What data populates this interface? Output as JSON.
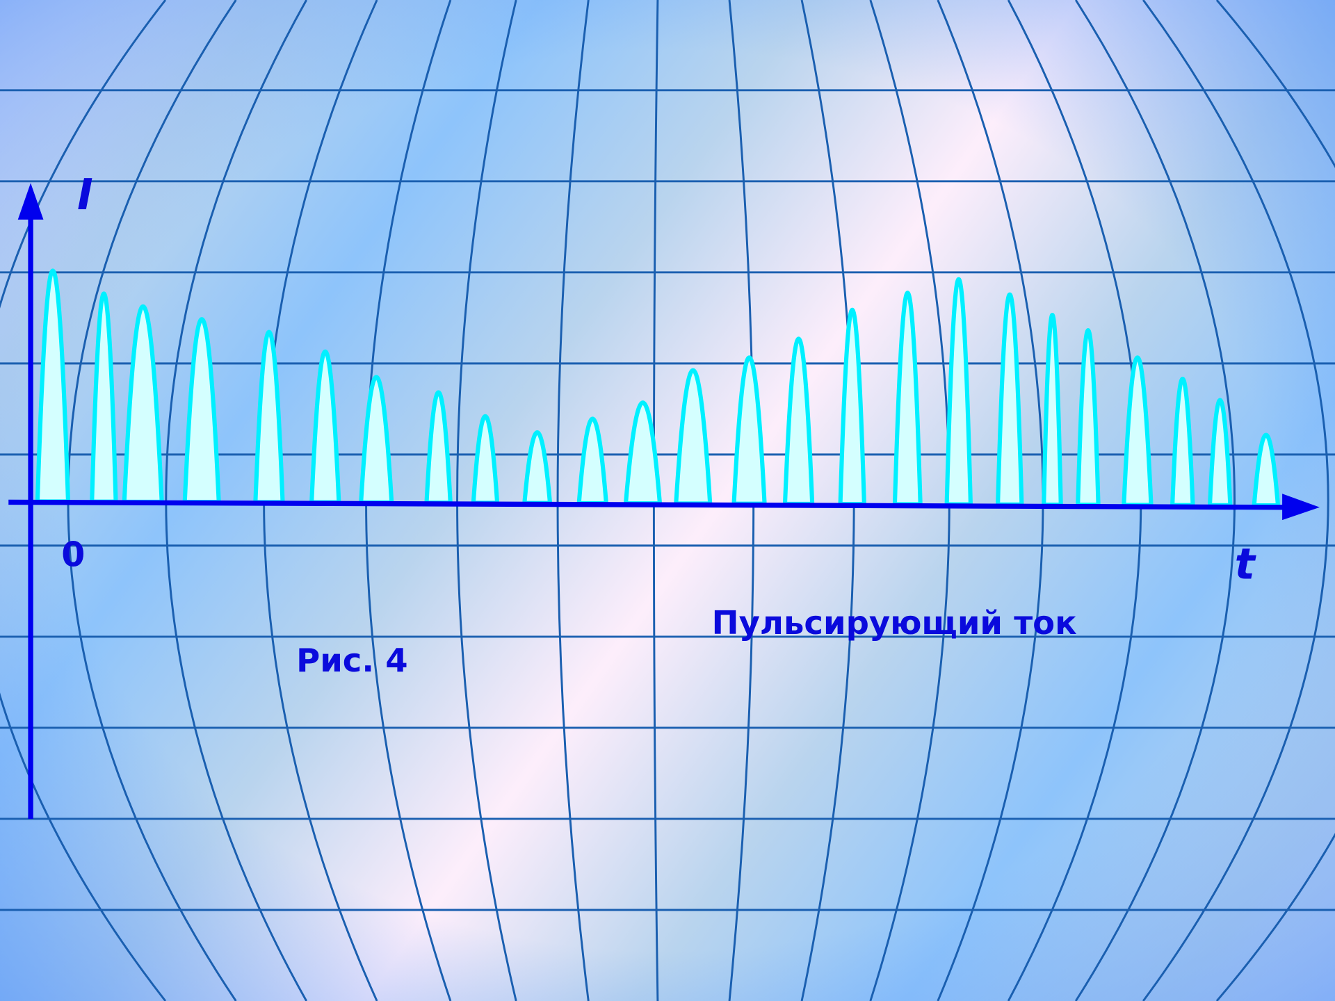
{
  "axes": {
    "y_label": "I",
    "origin_label": "0",
    "x_label": "t"
  },
  "title": "Пульсирующий ток",
  "caption": "Рис. 4"
}
